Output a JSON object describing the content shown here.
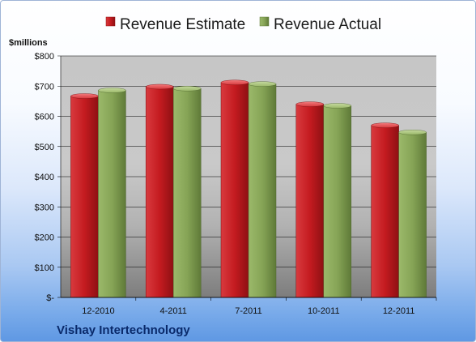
{
  "chart_data": {
    "type": "bar",
    "title": "",
    "company": "Vishay Intertechnology",
    "ylabel": "$millions",
    "xlabel": "",
    "categories": [
      "12-2010",
      "4-2011",
      "7-2011",
      "10-2011",
      "12-2011"
    ],
    "series": [
      {
        "name": "Revenue Estimate",
        "values": [
          667,
          698,
          712,
          640,
          570
        ],
        "color": "#cc1f24"
      },
      {
        "name": "Revenue Actual",
        "values": [
          686,
          692,
          707,
          635,
          547
        ],
        "color": "#8aa85a"
      }
    ],
    "ylim": [
      0,
      800
    ],
    "yticks": [
      0,
      100,
      200,
      300,
      400,
      500,
      600,
      700,
      800
    ],
    "ytick_labels": [
      "$-",
      "$100",
      "$200",
      "$300",
      "$400",
      "$500",
      "$600",
      "$700",
      "$800"
    ],
    "grid": true,
    "legend_position": "top"
  }
}
